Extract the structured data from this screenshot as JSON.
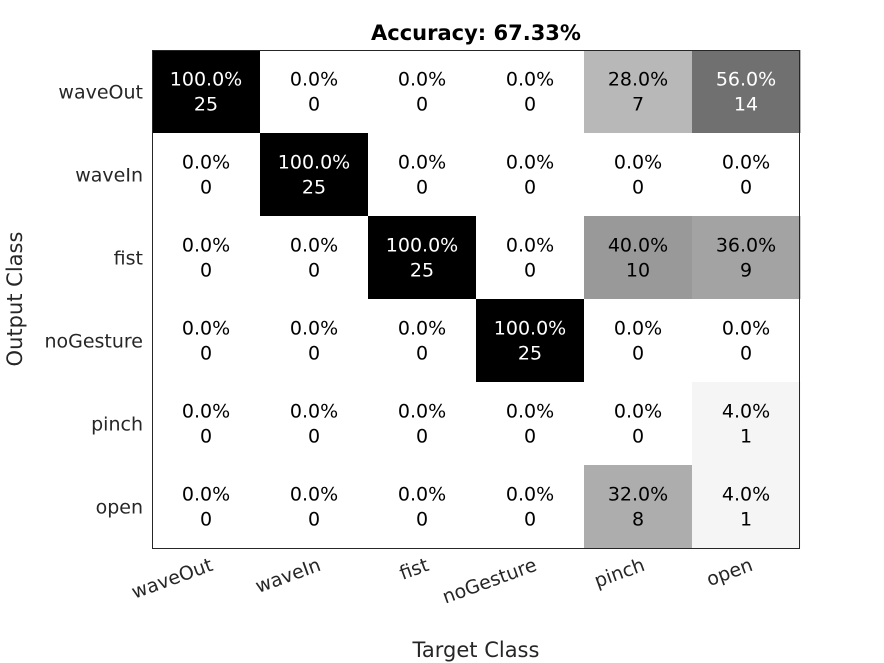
{
  "chart_data": {
    "type": "heatmap",
    "title": "Accuracy: 67.33%",
    "xlabel": "Target Class",
    "ylabel": "Output Class",
    "x_categories": [
      "waveOut",
      "waveIn",
      "fist",
      "noGesture",
      "pinch",
      "open"
    ],
    "y_categories": [
      "waveOut",
      "waveIn",
      "fist",
      "noGesture",
      "pinch",
      "open"
    ],
    "counts": [
      [
        25,
        0,
        0,
        0,
        7,
        14
      ],
      [
        0,
        25,
        0,
        0,
        0,
        0
      ],
      [
        0,
        0,
        25,
        0,
        10,
        9
      ],
      [
        0,
        0,
        0,
        25,
        0,
        0
      ],
      [
        0,
        0,
        0,
        0,
        0,
        1
      ],
      [
        0,
        0,
        0,
        0,
        8,
        1
      ]
    ],
    "percents": [
      [
        "100.0%",
        "0.0%",
        "0.0%",
        "0.0%",
        "28.0%",
        "56.0%"
      ],
      [
        "0.0%",
        "100.0%",
        "0.0%",
        "0.0%",
        "0.0%",
        "0.0%"
      ],
      [
        "0.0%",
        "0.0%",
        "100.0%",
        "0.0%",
        "40.0%",
        "36.0%"
      ],
      [
        "0.0%",
        "0.0%",
        "0.0%",
        "100.0%",
        "0.0%",
        "0.0%"
      ],
      [
        "0.0%",
        "0.0%",
        "0.0%",
        "0.0%",
        "0.0%",
        "4.0%"
      ],
      [
        "0.0%",
        "0.0%",
        "0.0%",
        "0.0%",
        "32.0%",
        "4.0%"
      ]
    ],
    "colormap": {
      "low": "#ffffff",
      "high": "#000000"
    }
  }
}
